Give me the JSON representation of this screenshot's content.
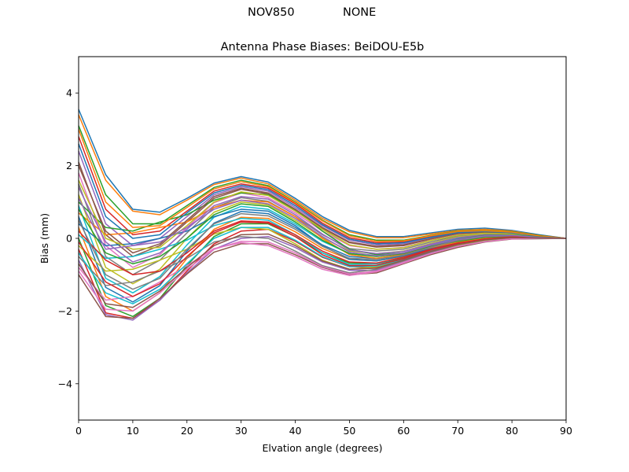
{
  "figure": {
    "suptitle_left": "NOV850",
    "suptitle_right": "NONE"
  },
  "chart_data": {
    "type": "line",
    "title": "Antenna Phase Biases: BeiDOU-E5b",
    "xlabel": "Elvation angle (degrees)",
    "ylabel": "Bias (mm)",
    "xlim": [
      0,
      90
    ],
    "ylim": [
      -5,
      5
    ],
    "xticks": [
      0,
      10,
      20,
      30,
      40,
      50,
      60,
      70,
      80,
      90
    ],
    "yticks": [
      -4,
      -2,
      0,
      2,
      4
    ],
    "xtick_labels": [
      "0",
      "10",
      "20",
      "30",
      "40",
      "50",
      "60",
      "70",
      "80",
      "90"
    ],
    "ytick_labels": [
      "−4",
      "−2",
      "0",
      "2",
      "4"
    ],
    "grid": false,
    "legend": "none",
    "colors": [
      "#1f77b4",
      "#ff7f0e",
      "#2ca02c",
      "#d62728",
      "#9467bd",
      "#8c564b",
      "#e377c2",
      "#7f7f7f",
      "#bcbd22",
      "#17becf"
    ],
    "x": [
      0,
      5,
      10,
      15,
      20,
      25,
      30,
      35,
      40,
      45,
      50,
      55,
      60,
      65,
      70,
      75,
      80,
      85,
      90
    ],
    "series": [
      {
        "values": [
          3.55,
          1.75,
          0.8,
          0.72,
          1.1,
          1.52,
          1.7,
          1.55,
          1.1,
          0.6,
          0.22,
          0.05,
          0.05,
          0.15,
          0.25,
          0.28,
          0.22,
          0.1,
          0.0
        ]
      },
      {
        "values": [
          3.4,
          1.6,
          0.75,
          0.65,
          1.05,
          1.48,
          1.66,
          1.5,
          1.05,
          0.55,
          0.18,
          0.02,
          0.02,
          0.12,
          0.22,
          0.25,
          0.2,
          0.08,
          0.0
        ]
      },
      {
        "values": [
          3.1,
          1.2,
          0.4,
          0.4,
          0.9,
          1.4,
          1.6,
          1.45,
          1.0,
          0.5,
          0.1,
          -0.05,
          -0.05,
          0.08,
          0.2,
          0.22,
          0.18,
          0.08,
          0.0
        ]
      },
      {
        "values": [
          2.8,
          0.8,
          0.1,
          0.2,
          0.75,
          1.3,
          1.5,
          1.38,
          0.95,
          0.42,
          0.02,
          -0.12,
          -0.1,
          0.05,
          0.17,
          0.2,
          0.16,
          0.07,
          0.0
        ]
      },
      {
        "values": [
          2.4,
          0.4,
          -0.2,
          0.0,
          0.6,
          1.2,
          1.42,
          1.3,
          0.85,
          0.35,
          -0.05,
          -0.18,
          -0.15,
          0.02,
          0.15,
          0.18,
          0.15,
          0.06,
          0.0
        ]
      },
      {
        "values": [
          2.1,
          0.1,
          -0.5,
          -0.2,
          0.45,
          1.1,
          1.35,
          1.22,
          0.78,
          0.28,
          -0.12,
          -0.24,
          -0.2,
          -0.02,
          0.12,
          0.16,
          0.14,
          0.06,
          0.0
        ]
      },
      {
        "values": [
          1.8,
          -0.2,
          -0.8,
          -0.45,
          0.3,
          0.98,
          1.25,
          1.12,
          0.7,
          0.2,
          -0.2,
          -0.3,
          -0.25,
          -0.05,
          0.1,
          0.15,
          0.13,
          0.05,
          0.0
        ]
      },
      {
        "values": [
          1.5,
          -0.5,
          -1.0,
          -0.6,
          0.15,
          0.85,
          1.12,
          1.02,
          0.6,
          0.1,
          -0.28,
          -0.35,
          -0.3,
          -0.1,
          0.07,
          0.13,
          0.12,
          0.05,
          0.0
        ]
      },
      {
        "values": [
          1.2,
          -0.8,
          -1.25,
          -0.85,
          0.0,
          0.72,
          1.0,
          0.92,
          0.5,
          0.02,
          -0.35,
          -0.42,
          -0.35,
          -0.14,
          0.04,
          0.11,
          0.1,
          0.04,
          0.0
        ]
      },
      {
        "values": [
          0.9,
          -1.1,
          -1.5,
          -1.05,
          -0.18,
          0.58,
          0.88,
          0.8,
          0.4,
          -0.08,
          -0.42,
          -0.48,
          -0.4,
          -0.18,
          0.0,
          0.09,
          0.09,
          0.04,
          0.0
        ]
      },
      {
        "values": [
          0.6,
          -1.35,
          -1.75,
          -1.3,
          -0.35,
          0.42,
          0.74,
          0.68,
          0.3,
          -0.18,
          -0.5,
          -0.55,
          -0.45,
          -0.22,
          -0.04,
          0.07,
          0.08,
          0.03,
          0.0
        ]
      },
      {
        "values": [
          0.3,
          -1.6,
          -2.0,
          -1.5,
          -0.55,
          0.25,
          0.58,
          0.55,
          0.18,
          -0.28,
          -0.58,
          -0.62,
          -0.5,
          -0.26,
          -0.08,
          0.05,
          0.07,
          0.03,
          0.0
        ]
      },
      {
        "values": [
          0.0,
          -1.85,
          -2.15,
          -1.65,
          -0.75,
          0.05,
          0.4,
          0.4,
          0.05,
          -0.4,
          -0.68,
          -0.7,
          -0.55,
          -0.3,
          -0.12,
          0.02,
          0.05,
          0.02,
          0.0
        ]
      },
      {
        "values": [
          -0.3,
          -2.05,
          -2.2,
          -1.7,
          -0.9,
          -0.15,
          0.2,
          0.25,
          -0.08,
          -0.52,
          -0.78,
          -0.8,
          -0.6,
          -0.35,
          -0.16,
          -0.02,
          0.03,
          0.01,
          0.0
        ]
      },
      {
        "values": [
          -0.6,
          -2.1,
          -2.25,
          -1.7,
          -0.95,
          -0.3,
          0.0,
          0.05,
          -0.25,
          -0.65,
          -0.88,
          -0.88,
          -0.65,
          -0.4,
          -0.2,
          -0.06,
          0.01,
          0.0,
          0.0
        ]
      },
      {
        "values": [
          -1.0,
          -2.15,
          -2.2,
          -1.65,
          -0.98,
          -0.38,
          -0.15,
          -0.15,
          -0.45,
          -0.8,
          -1.0,
          -0.95,
          -0.7,
          -0.45,
          -0.25,
          -0.1,
          -0.02,
          -0.01,
          0.0
        ]
      },
      {
        "values": [
          -0.8,
          -1.7,
          -1.6,
          -1.2,
          -0.75,
          -0.28,
          -0.12,
          -0.2,
          -0.5,
          -0.85,
          -1.02,
          -0.92,
          -0.68,
          -0.42,
          -0.22,
          -0.08,
          -0.01,
          0.0,
          0.0
        ]
      },
      {
        "values": [
          -0.5,
          -1.3,
          -1.2,
          -0.9,
          -0.55,
          -0.1,
          0.05,
          0.0,
          -0.35,
          -0.75,
          -0.95,
          -0.85,
          -0.62,
          -0.38,
          -0.2,
          -0.07,
          0.0,
          0.0,
          0.0
        ]
      },
      {
        "values": [
          -0.2,
          -0.9,
          -0.85,
          -0.6,
          -0.3,
          0.12,
          0.3,
          0.25,
          -0.15,
          -0.6,
          -0.85,
          -0.78,
          -0.58,
          -0.35,
          -0.18,
          -0.05,
          0.02,
          0.01,
          0.0
        ]
      },
      {
        "values": [
          0.1,
          -0.55,
          -0.5,
          -0.3,
          -0.05,
          0.35,
          0.55,
          0.5,
          0.1,
          -0.4,
          -0.72,
          -0.7,
          -0.52,
          -0.3,
          -0.15,
          -0.03,
          0.03,
          0.01,
          0.0
        ]
      },
      {
        "values": [
          0.4,
          -0.2,
          -0.15,
          0.0,
          0.2,
          0.6,
          0.8,
          0.75,
          0.35,
          -0.2,
          -0.58,
          -0.62,
          -0.48,
          -0.28,
          -0.12,
          -0.01,
          0.04,
          0.02,
          0.0
        ]
      },
      {
        "values": [
          0.7,
          0.1,
          0.15,
          0.3,
          0.45,
          0.85,
          1.05,
          1.0,
          0.6,
          0.0,
          -0.45,
          -0.55,
          -0.44,
          -0.25,
          -0.1,
          0.01,
          0.05,
          0.02,
          0.0
        ]
      },
      {
        "values": [
          1.0,
          0.3,
          0.2,
          0.45,
          0.65,
          1.05,
          1.25,
          1.2,
          0.8,
          0.2,
          -0.3,
          -0.45,
          -0.4,
          -0.22,
          -0.08,
          0.03,
          0.06,
          0.03,
          0.0
        ]
      },
      {
        "values": [
          0.2,
          -0.6,
          -1.0,
          -0.9,
          -0.4,
          0.2,
          0.48,
          0.45,
          0.1,
          -0.35,
          -0.65,
          -0.68,
          -0.52,
          -0.3,
          -0.13,
          -0.02,
          0.04,
          0.02,
          0.0
        ]
      },
      {
        "values": [
          1.4,
          -0.1,
          -0.65,
          -0.4,
          0.25,
          0.9,
          1.15,
          1.08,
          0.65,
          0.12,
          -0.32,
          -0.42,
          -0.36,
          -0.16,
          0.02,
          0.1,
          0.1,
          0.04,
          0.0
        ]
      },
      {
        "values": [
          2.0,
          0.2,
          -0.4,
          -0.15,
          0.5,
          1.15,
          1.38,
          1.25,
          0.8,
          0.3,
          -0.1,
          -0.22,
          -0.18,
          -0.01,
          0.13,
          0.17,
          0.14,
          0.06,
          0.0
        ]
      },
      {
        "values": [
          -0.9,
          -1.95,
          -2.0,
          -1.5,
          -0.85,
          -0.3,
          -0.08,
          -0.1,
          -0.4,
          -0.78,
          -0.98,
          -0.9,
          -0.66,
          -0.42,
          -0.22,
          -0.09,
          -0.01,
          0.0,
          0.0
        ]
      },
      {
        "values": [
          0.5,
          -1.0,
          -1.4,
          -1.1,
          -0.3,
          0.4,
          0.68,
          0.62,
          0.25,
          -0.22,
          -0.55,
          -0.58,
          -0.46,
          -0.24,
          -0.06,
          0.05,
          0.07,
          0.03,
          0.0
        ]
      },
      {
        "values": [
          1.6,
          0.0,
          -0.3,
          -0.25,
          0.35,
          1.0,
          1.28,
          1.18,
          0.75,
          0.25,
          -0.18,
          -0.3,
          -0.26,
          -0.06,
          0.09,
          0.14,
          0.12,
          0.05,
          0.0
        ]
      },
      {
        "values": [
          -0.4,
          -1.5,
          -1.8,
          -1.4,
          -0.7,
          0.0,
          0.3,
          0.3,
          -0.05,
          -0.5,
          -0.78,
          -0.76,
          -0.58,
          -0.33,
          -0.15,
          -0.03,
          0.03,
          0.01,
          0.0
        ]
      },
      {
        "values": [
          2.6,
          0.6,
          0.0,
          0.1,
          0.7,
          1.25,
          1.46,
          1.34,
          0.9,
          0.38,
          -0.02,
          -0.15,
          -0.12,
          0.03,
          0.16,
          0.19,
          0.15,
          0.06,
          0.0
        ]
      },
      {
        "values": [
          3.0,
          1.0,
          0.3,
          0.35,
          0.85,
          1.36,
          1.56,
          1.42,
          0.98,
          0.48,
          0.07,
          -0.08,
          -0.07,
          0.07,
          0.19,
          0.21,
          0.17,
          0.07,
          0.0
        ]
      },
      {
        "values": [
          0.8,
          -0.4,
          -0.7,
          -0.5,
          0.0,
          0.65,
          0.95,
          0.88,
          0.45,
          -0.05,
          -0.42,
          -0.5,
          -0.42,
          -0.2,
          -0.02,
          0.08,
          0.09,
          0.04,
          0.0
        ]
      },
      {
        "values": [
          -0.1,
          -1.2,
          -1.6,
          -1.25,
          -0.5,
          0.15,
          0.45,
          0.42,
          0.05,
          -0.45,
          -0.75,
          -0.74,
          -0.56,
          -0.32,
          -0.14,
          -0.02,
          0.04,
          0.02,
          0.0
        ]
      },
      {
        "values": [
          1.1,
          -0.3,
          -0.2,
          -0.1,
          0.3,
          0.8,
          1.05,
          0.95,
          0.55,
          0.05,
          -0.38,
          -0.48,
          -0.4,
          -0.19,
          -0.03,
          0.07,
          0.08,
          0.03,
          0.0
        ]
      },
      {
        "values": [
          -0.7,
          -1.8,
          -1.9,
          -1.45,
          -0.8,
          -0.2,
          0.1,
          0.12,
          -0.2,
          -0.62,
          -0.85,
          -0.82,
          -0.6,
          -0.36,
          -0.17,
          -0.04,
          0.02,
          0.01,
          0.0
        ]
      }
    ]
  }
}
